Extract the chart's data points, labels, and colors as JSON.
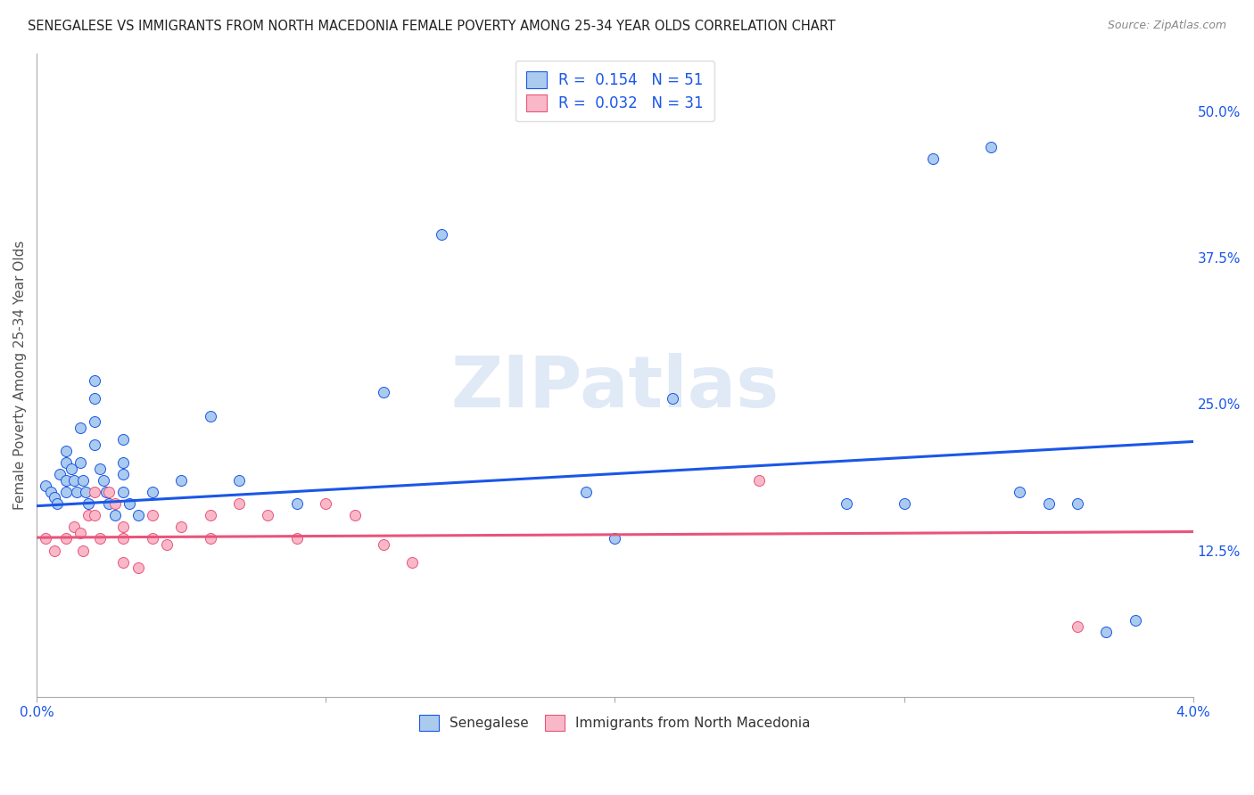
{
  "title": "SENEGALESE VS IMMIGRANTS FROM NORTH MACEDONIA FEMALE POVERTY AMONG 25-34 YEAR OLDS CORRELATION CHART",
  "source": "Source: ZipAtlas.com",
  "ylabel": "Female Poverty Among 25-34 Year Olds",
  "xlim": [
    0.0,
    0.04
  ],
  "ylim": [
    0.0,
    0.55
  ],
  "xticks": [
    0.0,
    0.01,
    0.02,
    0.03,
    0.04
  ],
  "xticklabels": [
    "0.0%",
    "",
    "",
    "",
    "4.0%"
  ],
  "yticks_right": [
    0.125,
    0.25,
    0.375,
    0.5
  ],
  "yticklabels_right": [
    "12.5%",
    "25.0%",
    "37.5%",
    "50.0%"
  ],
  "blue_color": "#aacbee",
  "pink_color": "#f9b8c8",
  "line_blue": "#1a56e8",
  "line_pink": "#e8547a",
  "R_blue": "0.154",
  "N_blue": "51",
  "R_pink": "0.032",
  "N_pink": "31",
  "legend_label_blue": "Senegalese",
  "legend_label_pink": "Immigrants from North Macedonia",
  "watermark": "ZIPatlas",
  "blue_scatter_x": [
    0.0003,
    0.0005,
    0.0006,
    0.0007,
    0.0008,
    0.001,
    0.001,
    0.001,
    0.001,
    0.0012,
    0.0013,
    0.0014,
    0.0015,
    0.0015,
    0.0016,
    0.0017,
    0.0018,
    0.002,
    0.002,
    0.002,
    0.002,
    0.0022,
    0.0023,
    0.0024,
    0.0025,
    0.0027,
    0.003,
    0.003,
    0.003,
    0.003,
    0.0032,
    0.0035,
    0.004,
    0.005,
    0.006,
    0.007,
    0.009,
    0.012,
    0.014,
    0.019,
    0.02,
    0.022,
    0.028,
    0.03,
    0.031,
    0.033,
    0.034,
    0.035,
    0.036,
    0.037,
    0.038
  ],
  "blue_scatter_y": [
    0.18,
    0.175,
    0.17,
    0.165,
    0.19,
    0.21,
    0.2,
    0.185,
    0.175,
    0.195,
    0.185,
    0.175,
    0.23,
    0.2,
    0.185,
    0.175,
    0.165,
    0.27,
    0.255,
    0.235,
    0.215,
    0.195,
    0.185,
    0.175,
    0.165,
    0.155,
    0.22,
    0.2,
    0.19,
    0.175,
    0.165,
    0.155,
    0.175,
    0.185,
    0.24,
    0.185,
    0.165,
    0.26,
    0.395,
    0.175,
    0.135,
    0.255,
    0.165,
    0.165,
    0.46,
    0.47,
    0.175,
    0.165,
    0.165,
    0.055,
    0.065
  ],
  "pink_scatter_x": [
    0.0003,
    0.0006,
    0.001,
    0.0013,
    0.0015,
    0.0016,
    0.0018,
    0.002,
    0.002,
    0.0022,
    0.0025,
    0.0027,
    0.003,
    0.003,
    0.003,
    0.0035,
    0.004,
    0.004,
    0.0045,
    0.005,
    0.006,
    0.006,
    0.007,
    0.008,
    0.009,
    0.01,
    0.011,
    0.012,
    0.013,
    0.025,
    0.036
  ],
  "pink_scatter_y": [
    0.135,
    0.125,
    0.135,
    0.145,
    0.14,
    0.125,
    0.155,
    0.175,
    0.155,
    0.135,
    0.175,
    0.165,
    0.145,
    0.135,
    0.115,
    0.11,
    0.155,
    0.135,
    0.13,
    0.145,
    0.155,
    0.135,
    0.165,
    0.155,
    0.135,
    0.165,
    0.155,
    0.13,
    0.115,
    0.185,
    0.06
  ],
  "blue_trend_x": [
    0.0,
    0.04
  ],
  "blue_trend_y": [
    0.163,
    0.218
  ],
  "pink_trend_x": [
    0.0,
    0.04
  ],
  "pink_trend_y": [
    0.136,
    0.141
  ],
  "grid_color": "#cccccc",
  "background_color": "#ffffff",
  "title_fontsize": 10.5,
  "source_fontsize": 9,
  "tick_fontsize": 11,
  "ylabel_fontsize": 11
}
